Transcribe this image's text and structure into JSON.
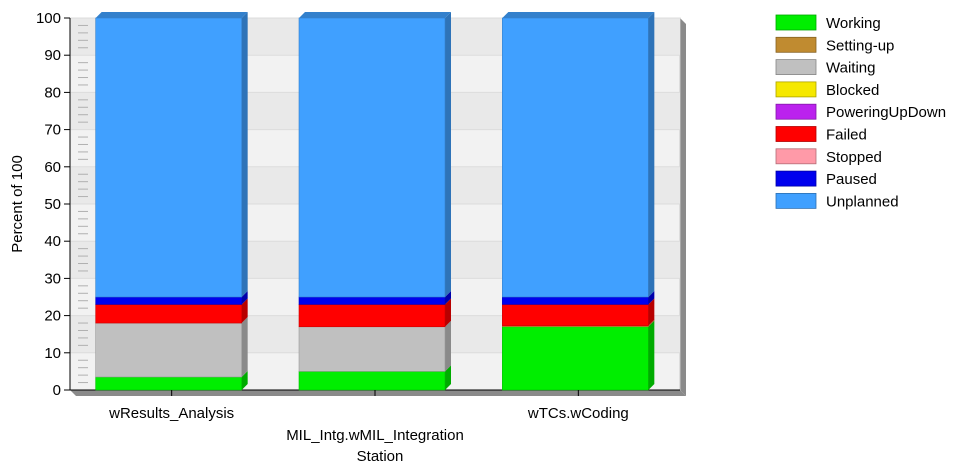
{
  "chart_data": {
    "type": "bar",
    "stacked": true,
    "style": "3d",
    "categories": [
      "wResults_Analysis",
      "MIL_Intg.wMIL_Integration",
      "wTCs.wCoding"
    ],
    "xlabel": "Station",
    "ylabel": "Percent of 100",
    "ylim": [
      0,
      100
    ],
    "yticks": [
      0,
      10,
      20,
      30,
      40,
      50,
      60,
      70,
      80,
      90,
      100
    ],
    "grid": true,
    "legend_position": "right",
    "series": [
      {
        "name": "Working",
        "color": "#00ee00",
        "values": [
          3.5,
          5,
          17
        ]
      },
      {
        "name": "Setting-up",
        "color": "#c08b30",
        "values": [
          0,
          0,
          0.3
        ]
      },
      {
        "name": "Waiting",
        "color": "#c0c0c0",
        "values": [
          14.5,
          12,
          0
        ]
      },
      {
        "name": "Blocked",
        "color": "#f5e800",
        "values": [
          0,
          0,
          0
        ]
      },
      {
        "name": "PoweringUpDown",
        "color": "#bb22ee",
        "values": [
          0,
          0,
          0
        ]
      },
      {
        "name": "Failed",
        "color": "#ff0000",
        "values": [
          5,
          6,
          5.7
        ]
      },
      {
        "name": "Stopped",
        "color": "#ff9aa8",
        "values": [
          0,
          0,
          0
        ]
      },
      {
        "name": "Paused",
        "color": "#0000ee",
        "values": [
          2,
          2,
          2
        ]
      },
      {
        "name": "Unplanned",
        "color": "#40a0ff",
        "values": [
          75,
          75,
          75
        ]
      }
    ]
  }
}
